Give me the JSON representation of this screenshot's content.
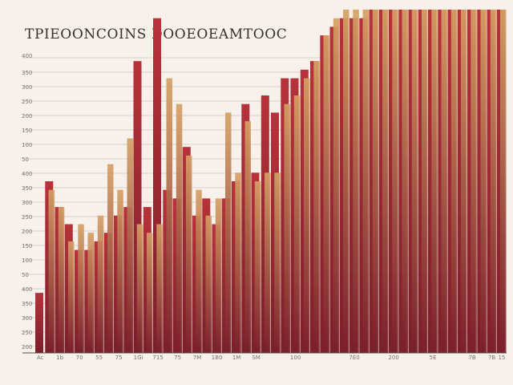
{
  "title": "TPIEOONCOINS DOOEOEAMTOOC",
  "chart_data": {
    "type": "bar",
    "title": "TPIEOONCOINS DOOEOEAMTOOC",
    "xlabel": "",
    "ylabel": "",
    "ylim": [
      0,
      4000
    ],
    "yticks": [
      "400",
      "350",
      "300",
      "250",
      "200",
      "150",
      "100",
      "50"
    ],
    "categories": [
      "1",
      "2",
      "3",
      "4",
      "5",
      "6",
      "7",
      "8",
      "9",
      "10",
      "11",
      "12",
      "13",
      "14",
      "15",
      "16",
      "17",
      "18",
      "19",
      "20",
      "21",
      "22",
      "23",
      "24",
      "25",
      "26",
      "27",
      "28",
      "29",
      "30",
      "31",
      "32",
      "33",
      "34",
      "35",
      "36",
      "37",
      "38",
      "39",
      "40",
      "41",
      "42",
      "43",
      "44",
      "45",
      "46",
      "47",
      "48"
    ],
    "cat_labels": [
      "Ac",
      "",
      "1b",
      "",
      "70",
      "",
      "55",
      "",
      "75",
      "",
      "1Gi",
      "",
      "715",
      "",
      "75",
      "",
      "7M",
      "",
      "1B0",
      "",
      "1M",
      "",
      "SM",
      "",
      "",
      "",
      "100",
      "",
      "",
      "",
      "",
      "",
      "7E0",
      "",
      "",
      "",
      "200",
      "",
      "",
      "",
      "5E",
      "",
      "",
      "",
      "7B",
      "",
      "7B",
      "15"
    ],
    "series": [
      {
        "color": "#b8323a",
        "values": [
          700,
          2000,
          1700,
          1500,
          1200,
          1200,
          1300,
          1400,
          1600,
          1700,
          3400,
          1700,
          3900,
          1900,
          1800,
          2400,
          1600,
          1800,
          1500,
          1800,
          2000,
          2900,
          2100,
          3000,
          2800,
          3200,
          3200,
          3300,
          3400,
          3700,
          3800,
          3900,
          3900,
          3900,
          4000,
          4000,
          4000,
          4000,
          4000,
          4000,
          4000,
          4000,
          4000,
          4000,
          4000,
          4000,
          4000,
          4000
        ]
      },
      {
        "color": "#d6a165",
        "values": [
          0,
          1900,
          1700,
          1300,
          1500,
          1400,
          1600,
          2200,
          1900,
          2500,
          1500,
          1400,
          1500,
          3200,
          2900,
          2300,
          1900,
          1600,
          1800,
          2800,
          2100,
          2700,
          2000,
          2100,
          2100,
          2900,
          3000,
          3200,
          3400,
          3700,
          3900,
          4000,
          4000,
          4000,
          4000,
          4000,
          4000,
          4000,
          4000,
          4000,
          4000,
          4000,
          4000,
          4000,
          4000,
          4000,
          4000,
          4000
        ]
      }
    ]
  }
}
